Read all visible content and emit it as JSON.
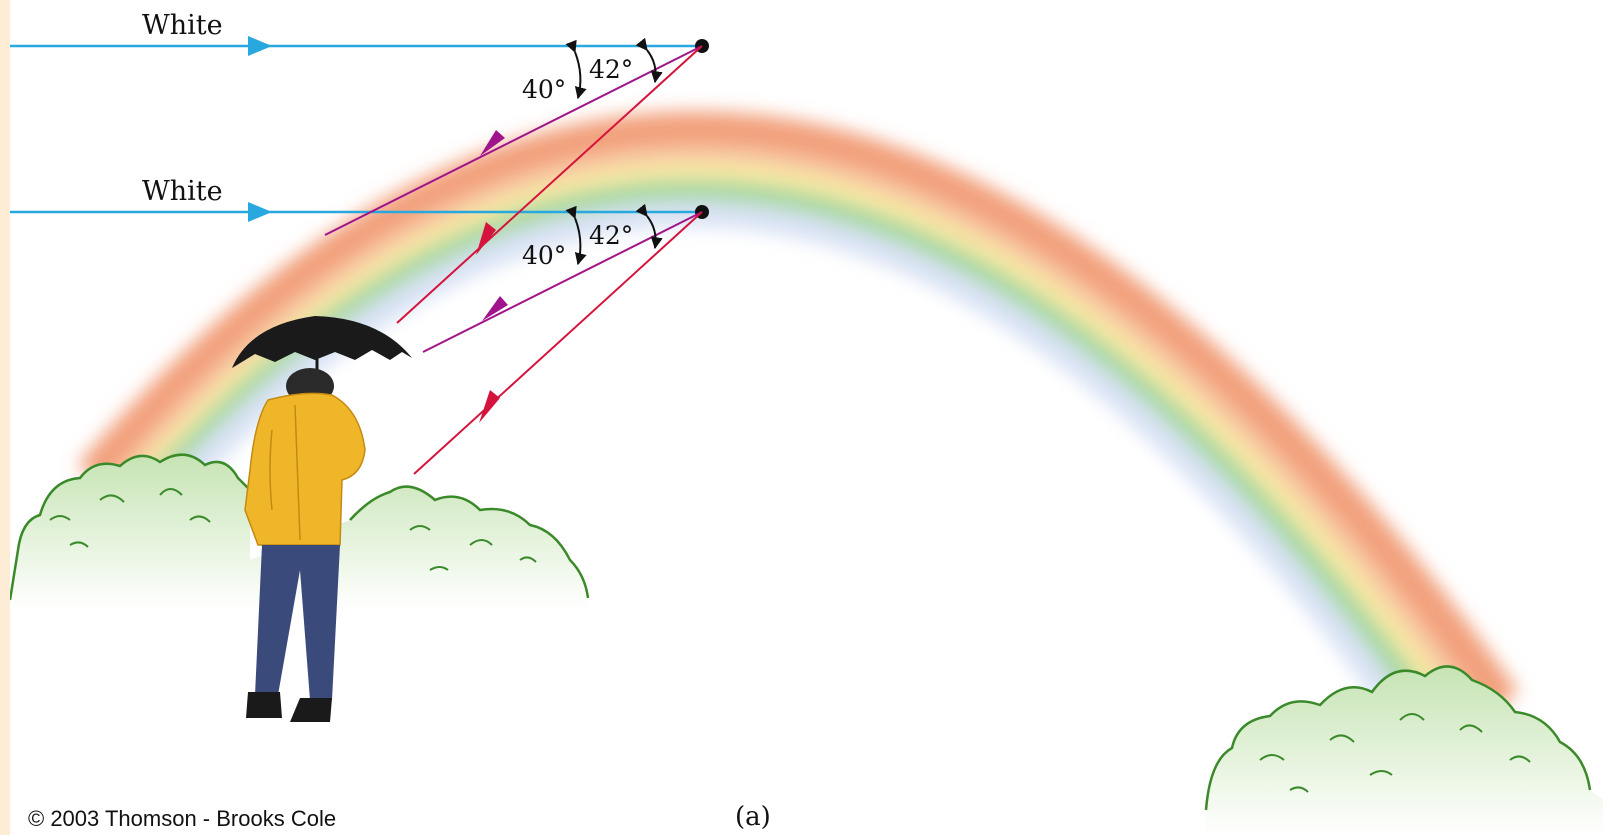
{
  "labels": {
    "ray_top": "White",
    "ray_bottom": "White",
    "angle_violet_top": "40°",
    "angle_red_top": "42°",
    "angle_violet_bottom": "40°",
    "angle_red_bottom": "42°",
    "credit": "© 2003 Thomson - Brooks Cole",
    "panel": "(a)"
  },
  "colors": {
    "incident_ray": "#29a8e0",
    "red_ray": "#d4143c",
    "violet_ray": "#a0148c",
    "frame": "#fdecd6",
    "foliage_outline": "#3a8a2a",
    "foliage_fill": "#d6ecc6",
    "coat": "#f0b62a",
    "umbrella": "#1a1a1a",
    "rainbow_red": "#f2a07c",
    "rainbow_yellow": "#f7e9a4",
    "rainbow_green": "#a6d8a0",
    "rainbow_violet": "#d8e2f4"
  },
  "icons": {
    "observer": "person-with-umbrella",
    "bushes": "bush-shape"
  }
}
